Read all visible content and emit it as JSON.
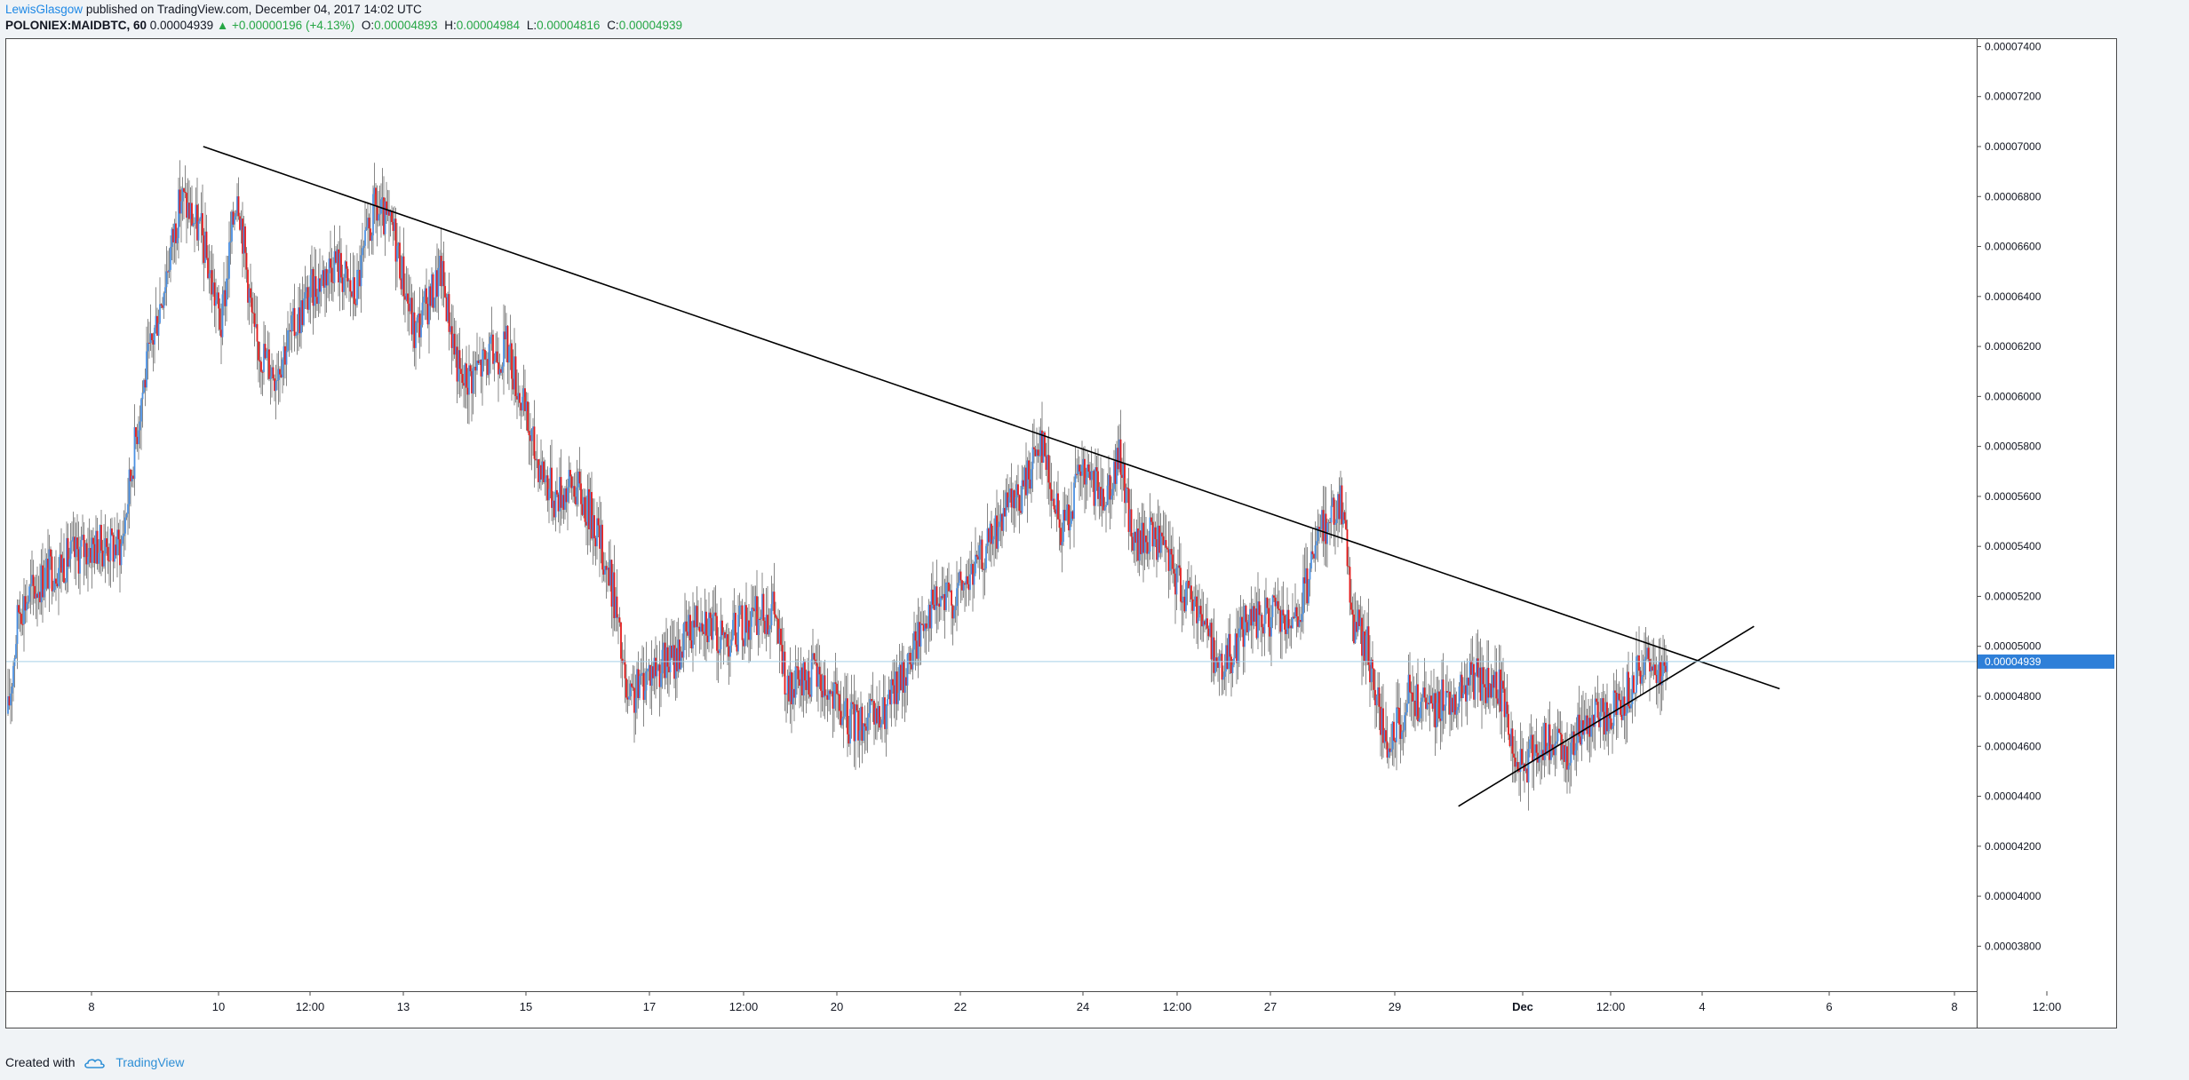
{
  "header": {
    "author": "LewisGlasgow",
    "published_text": "published on TradingView.com, December 04, 2017 14:02 UTC",
    "symbol": "POLONIEX:MAIDBTC, 60",
    "last_price": "0.00004939",
    "change": "▲ +0.00000196 (+4.13%)",
    "open_label": "O:",
    "open": "0.00004893",
    "high_label": "H:",
    "high": "0.00004984",
    "low_label": "L:",
    "low": "0.00004816",
    "close_label": "C:",
    "close": "0.00004939"
  },
  "footer": {
    "created_with": "Created with",
    "brand": "TradingView",
    "logo_icon": "tradingview-cloud-icon"
  },
  "colors": {
    "up": "#4a90e2",
    "down": "#e31b1b",
    "wick": "#7a7a7a",
    "trendline": "#000000",
    "price_line": "#a8d0e6",
    "price_label_bg": "#2e7fd8"
  },
  "chart_data": {
    "type": "candlestick",
    "interval": "60",
    "current_price": 4.939e-05,
    "x_ticks": [
      "8",
      "10",
      "12:00",
      "13",
      "15",
      "17",
      "12:00",
      "20",
      "22",
      "24",
      "12:00",
      "27",
      "29",
      "Dec",
      "12:00",
      "4",
      "6",
      "8",
      "12:00"
    ],
    "y_ticks": [
      "0.00007400",
      "0.00007200",
      "0.00007000",
      "0.00006800",
      "0.00006600",
      "0.00006400",
      "0.00006200",
      "0.00006000",
      "0.00005800",
      "0.00005600",
      "0.00005400",
      "0.00005200",
      "0.00005000",
      "0.00004800",
      "0.00004600",
      "0.00004400",
      "0.00004200",
      "0.00004000",
      "0.00003800"
    ],
    "y_range": [
      3.62e-05,
      7.43e-05
    ],
    "price_path": [
      [
        0,
        4.73e-05
      ],
      [
        8,
        5.15e-05
      ],
      [
        30,
        5.3e-05
      ],
      [
        60,
        5.4e-05
      ],
      [
        85,
        5.4e-05
      ],
      [
        100,
        6e-05
      ],
      [
        115,
        6.4e-05
      ],
      [
        130,
        6.8e-05
      ],
      [
        145,
        6.65e-05
      ],
      [
        160,
        6.28e-05
      ],
      [
        172,
        6.85e-05
      ],
      [
        185,
        6.22e-05
      ],
      [
        200,
        6.1e-05
      ],
      [
        225,
        6.4e-05
      ],
      [
        245,
        6.55e-05
      ],
      [
        260,
        6.4e-05
      ],
      [
        275,
        6.75e-05
      ],
      [
        290,
        6.65e-05
      ],
      [
        305,
        6.25e-05
      ],
      [
        325,
        6.5e-05
      ],
      [
        340,
        6.05e-05
      ],
      [
        360,
        6.15e-05
      ],
      [
        375,
        6.2e-05
      ],
      [
        395,
        5.78e-05
      ],
      [
        410,
        5.6e-05
      ],
      [
        425,
        5.65e-05
      ],
      [
        440,
        5.5e-05
      ],
      [
        455,
        5.2e-05
      ],
      [
        465,
        4.75e-05
      ],
      [
        480,
        4.9e-05
      ],
      [
        500,
        4.95e-05
      ],
      [
        520,
        5.15e-05
      ],
      [
        535,
        5.02e-05
      ],
      [
        555,
        5.1e-05
      ],
      [
        575,
        5.15e-05
      ],
      [
        585,
        4.8e-05
      ],
      [
        605,
        4.9e-05
      ],
      [
        630,
        4.7e-05
      ],
      [
        655,
        4.7e-05
      ],
      [
        675,
        4.92e-05
      ],
      [
        690,
        5.15e-05
      ],
      [
        710,
        5.2e-05
      ],
      [
        725,
        5.3e-05
      ],
      [
        745,
        5.5e-05
      ],
      [
        760,
        5.6e-05
      ],
      [
        775,
        5.85e-05
      ],
      [
        790,
        5.45e-05
      ],
      [
        805,
        5.7e-05
      ],
      [
        820,
        5.6e-05
      ],
      [
        835,
        5.75e-05
      ],
      [
        845,
        5.4e-05
      ],
      [
        860,
        5.45e-05
      ],
      [
        880,
        5.25e-05
      ],
      [
        895,
        5.15e-05
      ],
      [
        910,
        4.9e-05
      ],
      [
        930,
        5.1e-05
      ],
      [
        950,
        5.12e-05
      ],
      [
        965,
        5.05e-05
      ],
      [
        985,
        5.45e-05
      ],
      [
        1000,
        5.6e-05
      ],
      [
        1010,
        5.1e-05
      ],
      [
        1020,
        5e-05
      ],
      [
        1035,
        4.55e-05
      ],
      [
        1050,
        4.8e-05
      ],
      [
        1065,
        4.75e-05
      ],
      [
        1085,
        4.8e-05
      ],
      [
        1100,
        4.87e-05
      ],
      [
        1120,
        4.82e-05
      ],
      [
        1135,
        4.5e-05
      ],
      [
        1150,
        4.62e-05
      ],
      [
        1170,
        4.58e-05
      ],
      [
        1185,
        4.7e-05
      ],
      [
        1205,
        4.75e-05
      ],
      [
        1225,
        4.9e-05
      ],
      [
        1245,
        4.94e-05
      ]
    ],
    "trendlines": [
      {
        "name": "descending-resistance",
        "from": [
          0.1,
          7e-05
        ],
        "to": [
          0.9,
          4.83e-05
        ]
      },
      {
        "name": "ascending-support",
        "from": [
          0.737,
          4.36e-05
        ],
        "to": [
          0.887,
          5.08e-05
        ]
      }
    ]
  }
}
